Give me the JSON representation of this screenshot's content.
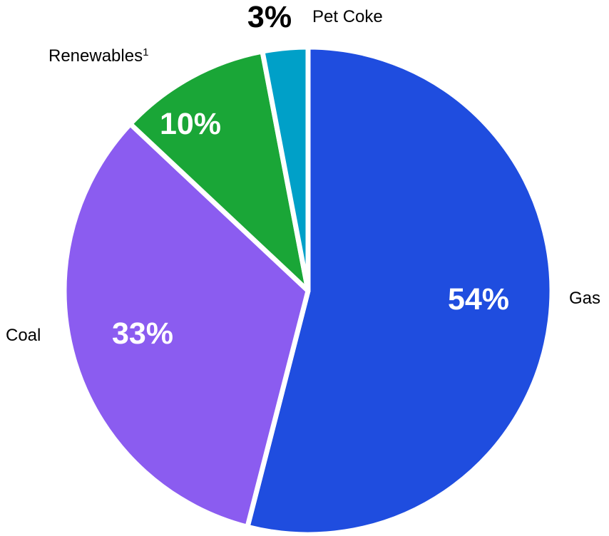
{
  "chart_data": {
    "type": "pie",
    "title": "",
    "slices": [
      {
        "label": "Gas",
        "value": 54,
        "value_label": "54%",
        "color": "#1f4ddf"
      },
      {
        "label": "Coal",
        "value": 33,
        "value_label": "33%",
        "color": "#8b5cf0"
      },
      {
        "label": "Renewables",
        "label_superscript": "1",
        "value": 10,
        "value_label": "10%",
        "color": "#1aa637"
      },
      {
        "label": "Pet Coke",
        "value": 3,
        "value_label": "3%",
        "color": "#00a0c8"
      }
    ],
    "start_angle": "12 o'clock",
    "direction": "clockwise",
    "legend": "none"
  }
}
